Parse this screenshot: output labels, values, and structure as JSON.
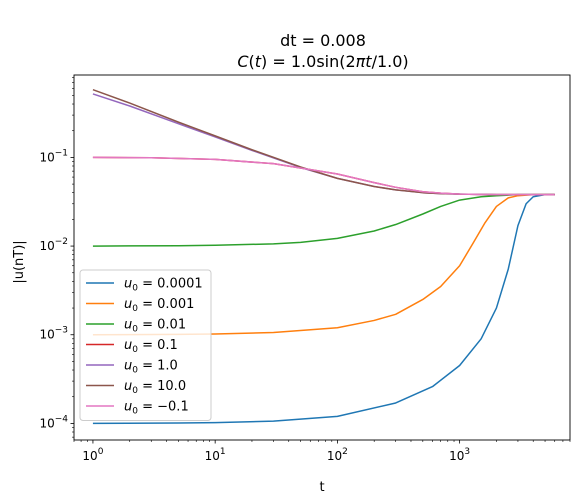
{
  "chart_data": {
    "type": "line",
    "title_line1": "dt = 0.008",
    "title_line2": "C(t) = 1.0sin(2πt/1.0)",
    "xlabel": "t",
    "ylabel": "|u(nT)|",
    "xscale": "log",
    "yscale": "log",
    "xlim": [
      0.7,
      8000
    ],
    "ylim": [
      6.5e-05,
      0.85
    ],
    "x_ticks": [
      {
        "value": 1,
        "base": "10",
        "exp": "0"
      },
      {
        "value": 10,
        "base": "10",
        "exp": "1"
      },
      {
        "value": 100,
        "base": "10",
        "exp": "2"
      },
      {
        "value": 1000,
        "base": "10",
        "exp": "3"
      }
    ],
    "y_ticks": [
      {
        "value": 0.0001,
        "base": "10",
        "exp": "−4"
      },
      {
        "value": 0.001,
        "base": "10",
        "exp": "−3"
      },
      {
        "value": 0.01,
        "base": "10",
        "exp": "−2"
      },
      {
        "value": 0.1,
        "base": "10",
        "exp": "−1"
      }
    ],
    "legend_position": "lower-left",
    "series": [
      {
        "name": "u_0 = 0.0001",
        "legend_sub_value": "0.0001",
        "color": "#1f77b4",
        "x": [
          1,
          5,
          10,
          30,
          100,
          300,
          600,
          1000,
          1500,
          2000,
          2500,
          3000,
          3500,
          4000,
          5000,
          6000
        ],
        "y": [
          0.0001,
          0.000101,
          0.000102,
          0.000106,
          0.00012,
          0.00017,
          0.00026,
          0.00045,
          0.0009,
          0.002,
          0.0055,
          0.017,
          0.03,
          0.036,
          0.038,
          0.038
        ]
      },
      {
        "name": "u_0 = 0.001",
        "legend_sub_value": "0.001",
        "color": "#ff7f0e",
        "x": [
          1,
          5,
          10,
          30,
          100,
          200,
          300,
          500,
          700,
          1000,
          1300,
          1600,
          2000,
          2500,
          3000,
          4000,
          6000
        ],
        "y": [
          0.001,
          0.00101,
          0.00102,
          0.00106,
          0.0012,
          0.00145,
          0.0017,
          0.0025,
          0.0035,
          0.006,
          0.011,
          0.018,
          0.028,
          0.035,
          0.037,
          0.038,
          0.038
        ]
      },
      {
        "name": "u_0 = 0.01",
        "legend_sub_value": "0.01",
        "color": "#2ca02c",
        "x": [
          1,
          5,
          10,
          30,
          50,
          100,
          200,
          300,
          500,
          700,
          1000,
          1500,
          2000,
          3000,
          6000
        ],
        "y": [
          0.01,
          0.0101,
          0.0102,
          0.0106,
          0.011,
          0.0122,
          0.0148,
          0.0175,
          0.023,
          0.028,
          0.033,
          0.036,
          0.037,
          0.038,
          0.038
        ]
      },
      {
        "name": "u_0 = 0.1",
        "legend_sub_value": "0.1",
        "color": "#d62728",
        "x": [
          1,
          3,
          10,
          30,
          100,
          200,
          300,
          500,
          700,
          1000,
          2000,
          6000
        ],
        "y": [
          0.1,
          0.099,
          0.095,
          0.085,
          0.065,
          0.052,
          0.046,
          0.041,
          0.0395,
          0.0385,
          0.038,
          0.038
        ]
      },
      {
        "name": "u_0 = 1.0",
        "legend_sub_value": "1.0",
        "color": "#9467bd",
        "x": [
          1,
          2,
          5,
          10,
          20,
          50,
          100,
          200,
          300,
          500,
          700,
          1000,
          2000,
          6000
        ],
        "y": [
          0.52,
          0.38,
          0.24,
          0.17,
          0.12,
          0.077,
          0.058,
          0.047,
          0.043,
          0.04,
          0.039,
          0.0385,
          0.038,
          0.038
        ]
      },
      {
        "name": "u_0 = 10.0",
        "legend_sub_value": "10.0",
        "color": "#8c564b",
        "x": [
          1,
          2,
          5,
          10,
          20,
          50,
          100,
          200,
          300,
          500,
          700,
          1000,
          2000,
          6000
        ],
        "y": [
          0.58,
          0.41,
          0.25,
          0.175,
          0.122,
          0.078,
          0.058,
          0.047,
          0.043,
          0.04,
          0.039,
          0.0385,
          0.038,
          0.038
        ]
      },
      {
        "name": "u_0 = −0.1",
        "legend_sub_value": "−0.1",
        "color": "#e377c2",
        "x": [
          1,
          3,
          10,
          30,
          100,
          200,
          300,
          500,
          700,
          1000,
          2000,
          6000
        ],
        "y": [
          0.1,
          0.099,
          0.095,
          0.085,
          0.065,
          0.052,
          0.046,
          0.041,
          0.0395,
          0.0385,
          0.038,
          0.038
        ]
      }
    ]
  }
}
